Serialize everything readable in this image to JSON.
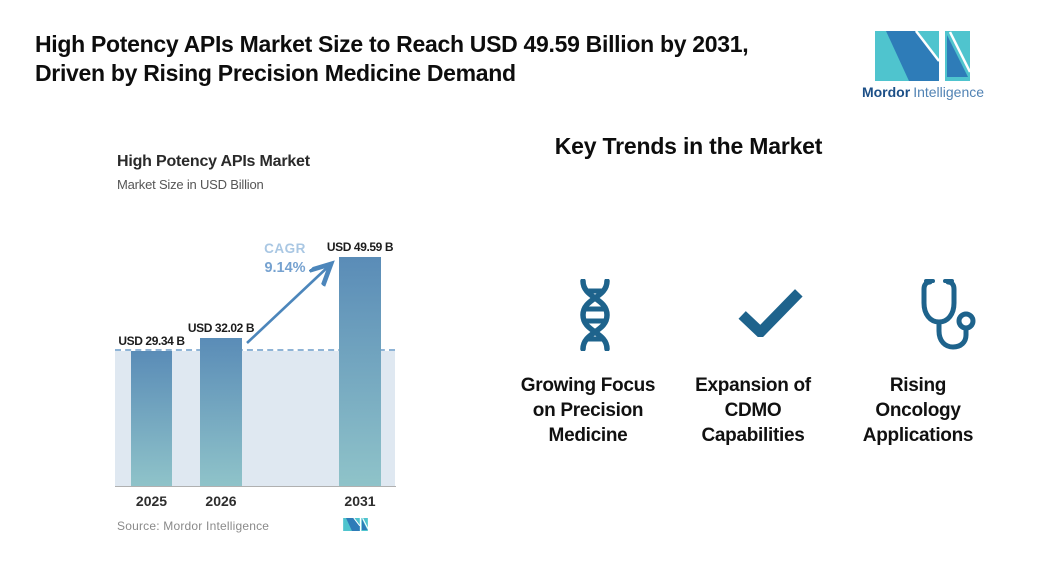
{
  "header": {
    "title_line1": "High Potency APIs Market Size to Reach USD 49.59 Billion by 2031,",
    "title_line2": "Driven by Rising Precision Medicine Demand",
    "brand": {
      "name_primary": "Mordor",
      "name_secondary": "Intelligence"
    }
  },
  "chart": {
    "title": "High Potency APIs Market",
    "subtitle": "Market Size in USD Billion",
    "cagr_label": "CAGR",
    "cagr_value": "9.14%",
    "source": "Source: Mordor Intelligence"
  },
  "chart_data": {
    "type": "bar",
    "categories": [
      "2025",
      "2026",
      "2031"
    ],
    "values": [
      29.34,
      32.02,
      49.59
    ],
    "bar_value_labels": [
      "USD 29.34 B",
      "USD 32.02 B",
      "USD 49.59 B"
    ],
    "title": "High Potency APIs Market",
    "ylabel": "Market Size in USD Billion",
    "ylim": [
      0,
      55
    ],
    "grid": false,
    "legend": "none",
    "annotations": {
      "cagr_label": "CAGR",
      "cagr_value": "9.14%",
      "dashed_baseline_at_value": 29.34,
      "arrow": "from 2026 bar top to 2031 bar top"
    }
  },
  "trends": {
    "heading": "Key Trends in the Market",
    "items": [
      {
        "icon": "dna-icon",
        "lines": [
          "Growing Focus",
          "on Precision",
          "Medicine"
        ]
      },
      {
        "icon": "checkmark-icon",
        "lines": [
          "Expansion of",
          "CDMO",
          "Capabilities"
        ]
      },
      {
        "icon": "stethoscope-icon",
        "lines": [
          "Rising",
          "Oncology",
          "Applications"
        ]
      }
    ]
  },
  "colors": {
    "brand_teal": "#4FC4CE",
    "brand_blue": "#2E7CB8",
    "icon_blue": "#1E638C",
    "bar_top": "#5A8CB7",
    "bar_bottom": "#8FC3C9",
    "band": "#DFE8F1",
    "dashed_line": "#8FB4D6",
    "arrow": "#4C86BB",
    "cagr_label": "#A9C7E3",
    "cagr_value": "#76A2D0"
  }
}
